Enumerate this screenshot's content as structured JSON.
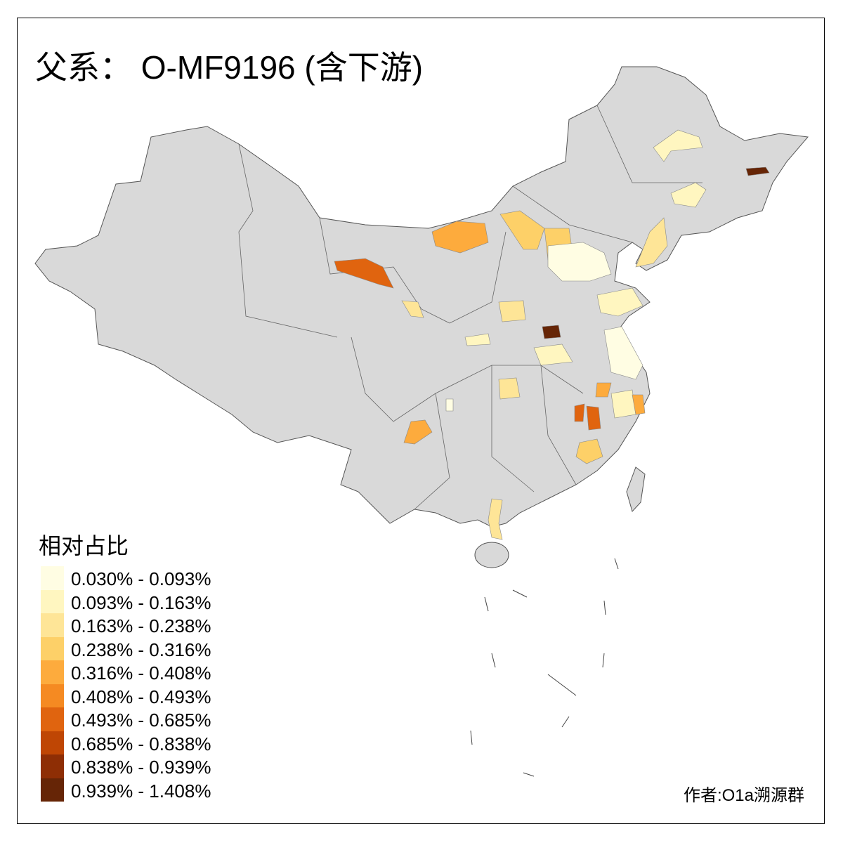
{
  "title": "父系： O-MF9196 (含下游)",
  "legend": {
    "title": "相对占比",
    "items": [
      {
        "label": "0.030% - 0.093%",
        "color": "#FFFDE3"
      },
      {
        "label": "0.093% - 0.163%",
        "color": "#FFF6C0"
      },
      {
        "label": "0.163% - 0.238%",
        "color": "#FEE597"
      },
      {
        "label": "0.238% - 0.316%",
        "color": "#FDD068"
      },
      {
        "label": "0.316% - 0.408%",
        "color": "#FDAB3D"
      },
      {
        "label": "0.408% - 0.493%",
        "color": "#F58A22"
      },
      {
        "label": "0.493% - 0.685%",
        "color": "#E0640F"
      },
      {
        "label": "0.685% - 0.838%",
        "color": "#BF4604"
      },
      {
        "label": "0.838% - 0.939%",
        "color": "#8E2E05"
      },
      {
        "label": "0.939% - 1.408%",
        "color": "#662506"
      }
    ]
  },
  "base_color": "#D9D9D9",
  "credit": "作者:O1a溯源群"
}
